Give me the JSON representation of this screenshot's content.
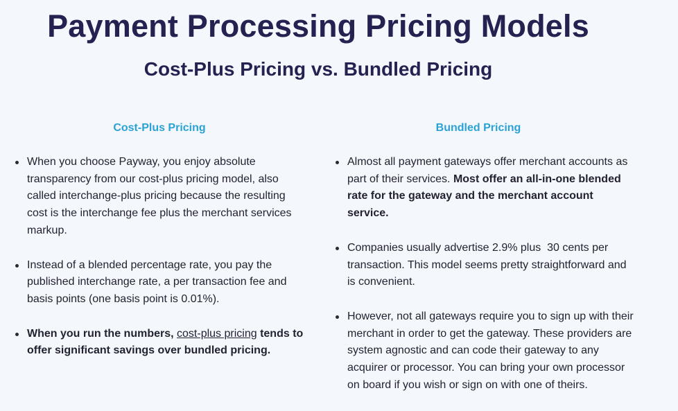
{
  "header": {
    "title": "Payment Processing Pricing Models",
    "subtitle": "Cost-Plus Pricing vs. Bundled Pricing"
  },
  "left_column": {
    "heading": "Cost-Plus Pricing",
    "bullets": [
      {
        "text": "When you choose Payway, you enjoy absolute transparency from our cost-plus pricing model, also called interchange-plus pricing because the resulting cost is the interchange fee plus the merchant services markup."
      },
      {
        "text": "Instead of a blended percentage rate, you pay the published interchange rate, a per transaction fee and basis points (one basis point is 0.01%)."
      },
      {
        "bold_before": "When you run the numbers, ",
        "link_text": "cost-plus pricing",
        "bold_after": " tends to offer significant savings over bundled pricing."
      }
    ]
  },
  "right_column": {
    "heading": "Bundled Pricing",
    "bullets": [
      {
        "text": "Almost all payment gateways offer merchant accounts as part of their services. ",
        "bold": "Most offer an all-in-one blended rate for the gateway and the merchant account service."
      },
      {
        "text": "Companies usually advertise 2.9% plus  30 cents per transaction. This model seems pretty straightforward and is convenient."
      },
      {
        "text": "However, not all gateways require you to sign up with their merchant in order to get the gateway. These providers are system agnostic and can code their gateway to any acquirer or processor. You can bring your own processor on board if you wish or sign on with one of theirs."
      }
    ]
  }
}
